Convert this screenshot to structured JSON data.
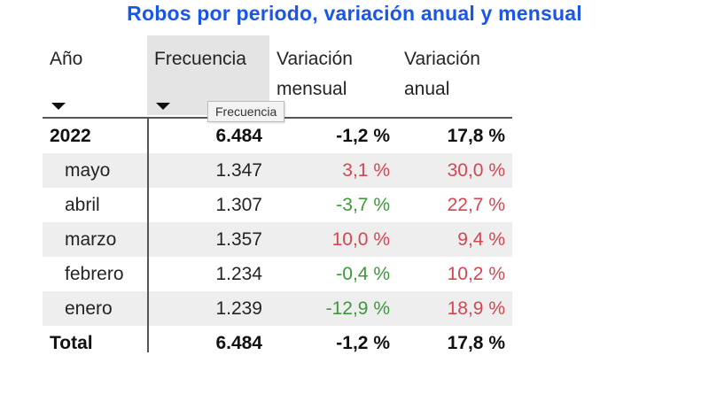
{
  "title": "Robos por periodo, variación anual y mensual",
  "colors": {
    "title": "#1a56e8",
    "positive": "#d64550",
    "negative": "#3a9a3a"
  },
  "headers": {
    "year": "Año",
    "frequency": "Frecuencia",
    "monthly_1": "Variación",
    "monthly_2": "mensual",
    "annual_1": "Variación",
    "annual_2": "anual"
  },
  "tooltip": "Frecuencia",
  "year_row": {
    "label": "2022",
    "frequency": "6.484",
    "monthly": "-1,2 %",
    "annual": "17,8 %"
  },
  "rows": [
    {
      "label": "mayo",
      "frequency": "1.347",
      "monthly": "3,1 %",
      "annual": "30,0 %",
      "monthly_color": "#d64550",
      "annual_color": "#d64550"
    },
    {
      "label": "abril",
      "frequency": "1.307",
      "monthly": "-3,7 %",
      "annual": "22,7 %",
      "monthly_color": "#3a9a3a",
      "annual_color": "#d64550"
    },
    {
      "label": "marzo",
      "frequency": "1.357",
      "monthly": "10,0 %",
      "annual": "9,4 %",
      "monthly_color": "#d64550",
      "annual_color": "#d64550"
    },
    {
      "label": "febrero",
      "frequency": "1.234",
      "monthly": "-0,4 %",
      "annual": "10,2 %",
      "monthly_color": "#3a9a3a",
      "annual_color": "#d64550"
    },
    {
      "label": "enero",
      "frequency": "1.239",
      "monthly": "-12,9 %",
      "annual": "18,9 %",
      "monthly_color": "#3a9a3a",
      "annual_color": "#d64550"
    }
  ],
  "total_row": {
    "label": "Total",
    "frequency": "6.484",
    "monthly": "-1,2 %",
    "annual": "17,8 %"
  }
}
